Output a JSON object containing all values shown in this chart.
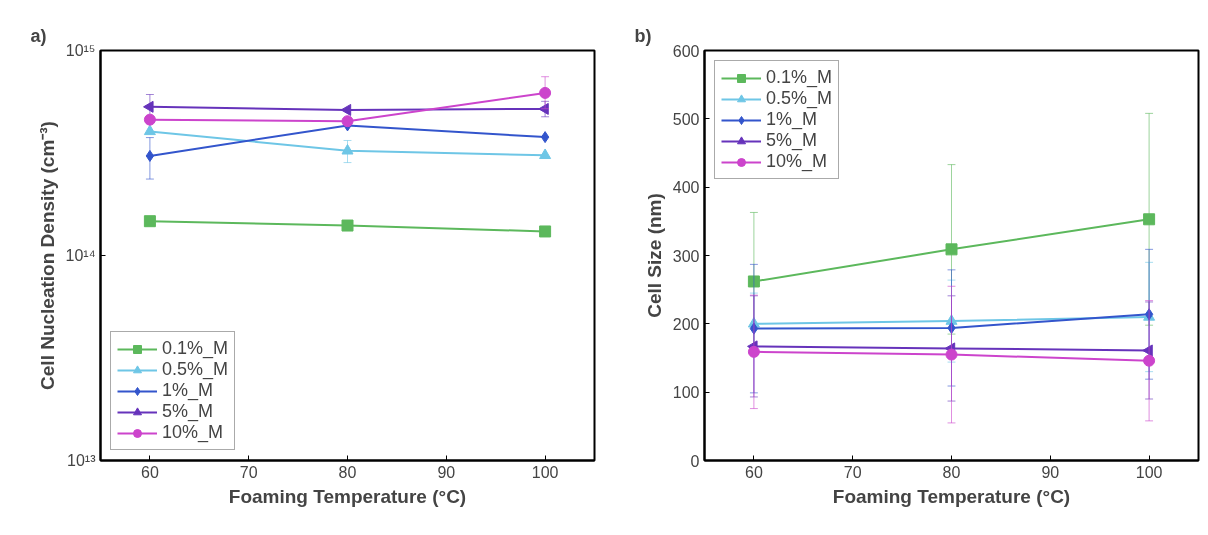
{
  "chart_data": [
    {
      "type": "line",
      "title": "a)",
      "xlabel": "Foaming Temperature (°C)",
      "ylabel": "Cell Nucleation Density (cm⁻³)",
      "log": "y",
      "x": [
        60,
        80,
        100
      ],
      "xlim": [
        55,
        105
      ],
      "xticks": [
        60,
        70,
        80,
        90,
        100
      ],
      "ylim": [
        10000000000000.0,
        1000000000000000.0
      ],
      "yticks": [
        {
          "value": 10000000000000.0,
          "label": "10¹³"
        },
        {
          "value": 100000000000000.0,
          "label": "10¹⁴"
        },
        {
          "value": 1000000000000000.0,
          "label": "10¹⁵"
        }
      ],
      "grid": false,
      "legend": "bottom left",
      "series": [
        {
          "name": "0.1%_M",
          "color": "#5cb85c",
          "marker": "square",
          "values": [
            147000000000000.0,
            140000000000000.0,
            131000000000000.0
          ]
        },
        {
          "name": "0.5%_M",
          "color": "#6ec6e6",
          "marker": "triangle",
          "values": [
            403000000000000.0,
            324000000000000.0,
            308000000000000.0
          ],
          "errors": [
            null,
            [
              284000000000000.0,
              364000000000000.0
            ],
            null
          ]
        },
        {
          "name": "1%_M",
          "color": "#3355cc",
          "marker": "diamond",
          "values": [
            306000000000000.0,
            431000000000000.0,
            378000000000000.0
          ],
          "errors": [
            [
              236000000000000.0,
              376000000000000.0
            ],
            null,
            null
          ]
        },
        {
          "name": "5%_M",
          "color": "#6633bb",
          "marker": "triangle_left",
          "values": [
            531000000000000.0,
            513000000000000.0,
            519000000000000.0
          ],
          "errors": [
            [
              450000000000000.0,
              610000000000000.0
            ],
            null,
            [
              475000000000000.0,
              565000000000000.0
            ]
          ]
        },
        {
          "name": "10%_M",
          "color": "#cc44cc",
          "marker": "circle",
          "values": [
            460000000000000.0,
            452000000000000.0,
            621000000000000.0
          ],
          "errors": [
            null,
            null,
            [
              520000000000000.0,
              745000000000000.0
            ]
          ]
        }
      ]
    },
    {
      "type": "line",
      "title": "b)",
      "xlabel": "Foaming Temperature (°C)",
      "ylabel": "Cell Size (nm)",
      "x": [
        60,
        80,
        100
      ],
      "xlim": [
        55,
        105
      ],
      "xticks": [
        60,
        70,
        80,
        90,
        100
      ],
      "ylim": [
        0,
        600
      ],
      "yticks": [
        0,
        100,
        200,
        300,
        400,
        500,
        600
      ],
      "grid": false,
      "legend": "top left",
      "series": [
        {
          "name": "0.1%_M",
          "color": "#5cb85c",
          "marker": "square",
          "values": [
            262,
            309,
            353
          ],
          "errors": [
            101,
            124,
            155
          ]
        },
        {
          "name": "0.5%_M",
          "color": "#6ec6e6",
          "marker": "triangle",
          "values": [
            200,
            204,
            210
          ],
          "errors": [
            45,
            60,
            80
          ]
        },
        {
          "name": "1%_M",
          "color": "#3355cc",
          "marker": "diamond",
          "values": [
            193,
            194,
            214
          ],
          "errors": [
            94,
            85,
            95
          ]
        },
        {
          "name": "5%_M",
          "color": "#6633bb",
          "marker": "triangle_left",
          "values": [
            167,
            164,
            161
          ],
          "errors": [
            74,
            77,
            71
          ]
        },
        {
          "name": "10%_M",
          "color": "#cc44cc",
          "marker": "circle",
          "values": [
            159,
            155,
            146
          ],
          "errors": [
            83,
            100,
            88
          ]
        }
      ]
    }
  ]
}
